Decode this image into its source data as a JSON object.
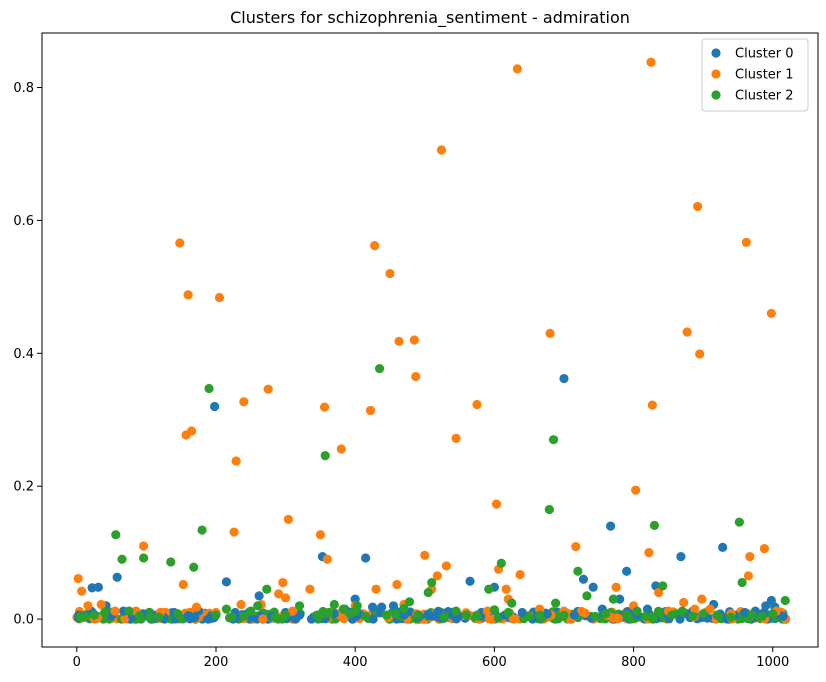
{
  "chart_data": {
    "type": "scatter",
    "title": "Clusters for schizophrenia_sentiment - admiration",
    "xlabel": "",
    "ylabel": "",
    "xlim": [
      -50,
      1065
    ],
    "ylim": [
      -0.042,
      0.882
    ],
    "x_ticks": [
      0,
      200,
      400,
      600,
      800,
      1000
    ],
    "x_tick_labels": [
      "0",
      "200",
      "400",
      "600",
      "800",
      "1000"
    ],
    "y_ticks": [
      0.0,
      0.2,
      0.4,
      0.6,
      0.8
    ],
    "y_tick_labels": [
      "0.0",
      "0.2",
      "0.4",
      "0.6",
      "0.8"
    ],
    "grid": false,
    "legend_position": "top-right",
    "series": [
      {
        "name": "Cluster 0",
        "color": "#1f77b4",
        "points": [
          [
            3,
            0.006
          ],
          [
            10,
            0.004
          ],
          [
            22,
            0.047
          ],
          [
            31,
            0.048
          ],
          [
            42,
            0.02
          ],
          [
            50,
            0.005
          ],
          [
            58,
            0.063
          ],
          [
            67,
            0.012
          ],
          [
            80,
            0.004
          ],
          [
            95,
            0.008
          ],
          [
            110,
            0.006
          ],
          [
            125,
            0.003
          ],
          [
            140,
            0.01
          ],
          [
            160,
            0.005
          ],
          [
            175,
            0.012
          ],
          [
            198,
            0.32
          ],
          [
            215,
            0.056
          ],
          [
            230,
            0.003
          ],
          [
            245,
            0.008
          ],
          [
            262,
            0.035
          ],
          [
            280,
            0.004
          ],
          [
            300,
            0.01
          ],
          [
            320,
            0.006
          ],
          [
            340,
            0.003
          ],
          [
            353,
            0.094
          ],
          [
            370,
            0.008
          ],
          [
            385,
            0.015
          ],
          [
            400,
            0.03
          ],
          [
            415,
            0.092
          ],
          [
            425,
            0.018
          ],
          [
            438,
            0.018
          ],
          [
            455,
            0.02
          ],
          [
            470,
            0.006
          ],
          [
            490,
            0.004
          ],
          [
            505,
            0.007
          ],
          [
            520,
            0.003
          ],
          [
            540,
            0.006
          ],
          [
            565,
            0.057
          ],
          [
            580,
            0.004
          ],
          [
            600,
            0.048
          ],
          [
            615,
            0.006
          ],
          [
            640,
            0.01
          ],
          [
            660,
            0.004
          ],
          [
            675,
            0.008
          ],
          [
            700,
            0.362
          ],
          [
            715,
            0.006
          ],
          [
            728,
            0.06
          ],
          [
            742,
            0.048
          ],
          [
            755,
            0.015
          ],
          [
            767,
            0.14
          ],
          [
            780,
            0.03
          ],
          [
            790,
            0.072
          ],
          [
            805,
            0.006
          ],
          [
            820,
            0.015
          ],
          [
            832,
            0.05
          ],
          [
            850,
            0.006
          ],
          [
            868,
            0.094
          ],
          [
            885,
            0.012
          ],
          [
            900,
            0.006
          ],
          [
            915,
            0.022
          ],
          [
            928,
            0.108
          ],
          [
            945,
            0.006
          ],
          [
            960,
            0.01
          ],
          [
            975,
            0.012
          ],
          [
            990,
            0.02
          ],
          [
            998,
            0.028
          ],
          [
            1003,
            0.018
          ],
          [
            1010,
            0.006
          ],
          [
            1015,
            0.004
          ]
        ]
      },
      {
        "name": "Cluster 1",
        "color": "#ff7f0e",
        "points": [
          [
            2,
            0.061
          ],
          [
            7,
            0.042
          ],
          [
            16,
            0.02
          ],
          [
            35,
            0.022
          ],
          [
            55,
            0.012
          ],
          [
            85,
            0.012
          ],
          [
            96,
            0.11
          ],
          [
            120,
            0.01
          ],
          [
            148,
            0.566
          ],
          [
            153,
            0.052
          ],
          [
            157,
            0.277
          ],
          [
            160,
            0.488
          ],
          [
            165,
            0.283
          ],
          [
            172,
            0.018
          ],
          [
            200,
            0.01
          ],
          [
            205,
            0.484
          ],
          [
            226,
            0.131
          ],
          [
            229,
            0.238
          ],
          [
            236,
            0.022
          ],
          [
            240,
            0.327
          ],
          [
            265,
            0.022
          ],
          [
            275,
            0.346
          ],
          [
            290,
            0.038
          ],
          [
            296,
            0.055
          ],
          [
            300,
            0.032
          ],
          [
            304,
            0.15
          ],
          [
            310,
            0.012
          ],
          [
            335,
            0.045
          ],
          [
            350,
            0.127
          ],
          [
            356,
            0.319
          ],
          [
            360,
            0.09
          ],
          [
            380,
            0.256
          ],
          [
            400,
            0.02
          ],
          [
            422,
            0.314
          ],
          [
            428,
            0.562
          ],
          [
            430,
            0.045
          ],
          [
            450,
            0.52
          ],
          [
            460,
            0.052
          ],
          [
            463,
            0.418
          ],
          [
            470,
            0.022
          ],
          [
            485,
            0.42
          ],
          [
            487,
            0.365
          ],
          [
            500,
            0.096
          ],
          [
            510,
            0.045
          ],
          [
            518,
            0.065
          ],
          [
            524,
            0.706
          ],
          [
            531,
            0.08
          ],
          [
            545,
            0.272
          ],
          [
            575,
            0.323
          ],
          [
            590,
            0.012
          ],
          [
            603,
            0.173
          ],
          [
            606,
            0.075
          ],
          [
            617,
            0.045
          ],
          [
            620,
            0.03
          ],
          [
            633,
            0.828
          ],
          [
            637,
            0.067
          ],
          [
            665,
            0.015
          ],
          [
            680,
            0.43
          ],
          [
            700,
            0.012
          ],
          [
            717,
            0.109
          ],
          [
            775,
            0.048
          ],
          [
            800,
            0.02
          ],
          [
            803,
            0.194
          ],
          [
            822,
            0.1
          ],
          [
            825,
            0.838
          ],
          [
            827,
            0.322
          ],
          [
            836,
            0.04
          ],
          [
            850,
            0.012
          ],
          [
            872,
            0.025
          ],
          [
            877,
            0.432
          ],
          [
            888,
            0.015
          ],
          [
            892,
            0.621
          ],
          [
            895,
            0.399
          ],
          [
            898,
            0.03
          ],
          [
            910,
            0.015
          ],
          [
            940,
            0.008
          ],
          [
            962,
            0.567
          ],
          [
            965,
            0.065
          ],
          [
            967,
            0.094
          ],
          [
            988,
            0.106
          ],
          [
            998,
            0.46
          ],
          [
            1005,
            0.012
          ]
        ]
      },
      {
        "name": "Cluster 2",
        "color": "#2ca02c",
        "points": [
          [
            5,
            0.004
          ],
          [
            12,
            0.003
          ],
          [
            25,
            0.006
          ],
          [
            40,
            0.01
          ],
          [
            56,
            0.127
          ],
          [
            65,
            0.09
          ],
          [
            75,
            0.012
          ],
          [
            90,
            0.005
          ],
          [
            96,
            0.092
          ],
          [
            105,
            0.004
          ],
          [
            118,
            0.003
          ],
          [
            135,
            0.086
          ],
          [
            145,
            0.008
          ],
          [
            168,
            0.078
          ],
          [
            180,
            0.134
          ],
          [
            190,
            0.347
          ],
          [
            200,
            0.006
          ],
          [
            215,
            0.015
          ],
          [
            222,
            0.003
          ],
          [
            240,
            0.004
          ],
          [
            250,
            0.012
          ],
          [
            260,
            0.02
          ],
          [
            273,
            0.045
          ],
          [
            285,
            0.003
          ],
          [
            300,
            0.006
          ],
          [
            320,
            0.02
          ],
          [
            345,
            0.006
          ],
          [
            357,
            0.246
          ],
          [
            362,
            0.01
          ],
          [
            370,
            0.022
          ],
          [
            383,
            0.015
          ],
          [
            392,
            0.008
          ],
          [
            400,
            0.012
          ],
          [
            403,
            0.02
          ],
          [
            415,
            0.004
          ],
          [
            435,
            0.377
          ],
          [
            445,
            0.006
          ],
          [
            458,
            0.008
          ],
          [
            470,
            0.016
          ],
          [
            478,
            0.026
          ],
          [
            490,
            0.006
          ],
          [
            505,
            0.04
          ],
          [
            510,
            0.055
          ],
          [
            528,
            0.003
          ],
          [
            545,
            0.012
          ],
          [
            560,
            0.006
          ],
          [
            575,
            0.004
          ],
          [
            592,
            0.045
          ],
          [
            600,
            0.014
          ],
          [
            610,
            0.084
          ],
          [
            620,
            0.01
          ],
          [
            625,
            0.024
          ],
          [
            650,
            0.004
          ],
          [
            665,
            0.006
          ],
          [
            679,
            0.165
          ],
          [
            685,
            0.27
          ],
          [
            688,
            0.024
          ],
          [
            700,
            0.006
          ],
          [
            720,
            0.072
          ],
          [
            733,
            0.035
          ],
          [
            745,
            0.004
          ],
          [
            760,
            0.008
          ],
          [
            771,
            0.03
          ],
          [
            790,
            0.006
          ],
          [
            805,
            0.012
          ],
          [
            818,
            0.004
          ],
          [
            830,
            0.141
          ],
          [
            842,
            0.05
          ],
          [
            855,
            0.006
          ],
          [
            870,
            0.012
          ],
          [
            885,
            0.004
          ],
          [
            900,
            0.008
          ],
          [
            920,
            0.006
          ],
          [
            940,
            0.003
          ],
          [
            952,
            0.146
          ],
          [
            956,
            0.055
          ],
          [
            970,
            0.006
          ],
          [
            985,
            0.004
          ],
          [
            1000,
            0.008
          ],
          [
            1018,
            0.028
          ]
        ]
      }
    ],
    "baseline_band": {
      "x_range": [
        0,
        1020
      ],
      "y_range": [
        0.0,
        0.012
      ],
      "note_colors": [
        "#1f77b4",
        "#ff7f0e",
        "#2ca02c"
      ]
    }
  }
}
